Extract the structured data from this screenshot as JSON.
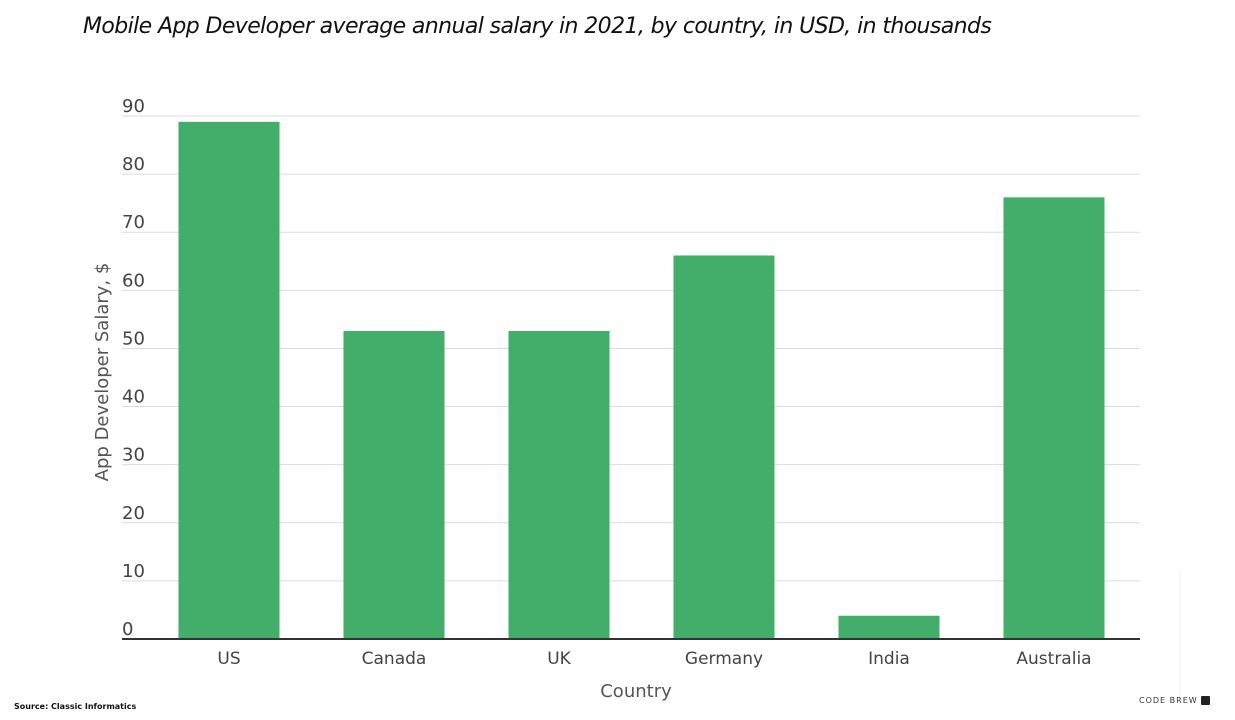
{
  "chart_data": {
    "type": "bar",
    "title": "Mobile App Developer average annual salary in 2021, by country, in USD, in thousands",
    "xlabel": "Country",
    "ylabel": "App Developer Salary, $",
    "categories": [
      "US",
      "Canada",
      "UK",
      "Germany",
      "India",
      "Australia"
    ],
    "values": [
      89,
      53,
      53,
      66,
      4,
      76
    ],
    "ylim": [
      0,
      90
    ],
    "yticks": [
      0,
      10,
      20,
      30,
      40,
      50,
      60,
      70,
      80,
      90
    ],
    "grid": true,
    "bar_color": "#43ae6a"
  },
  "footer": {
    "source": "Source: Classic Informatics",
    "logo_text": "CODE BREW"
  }
}
